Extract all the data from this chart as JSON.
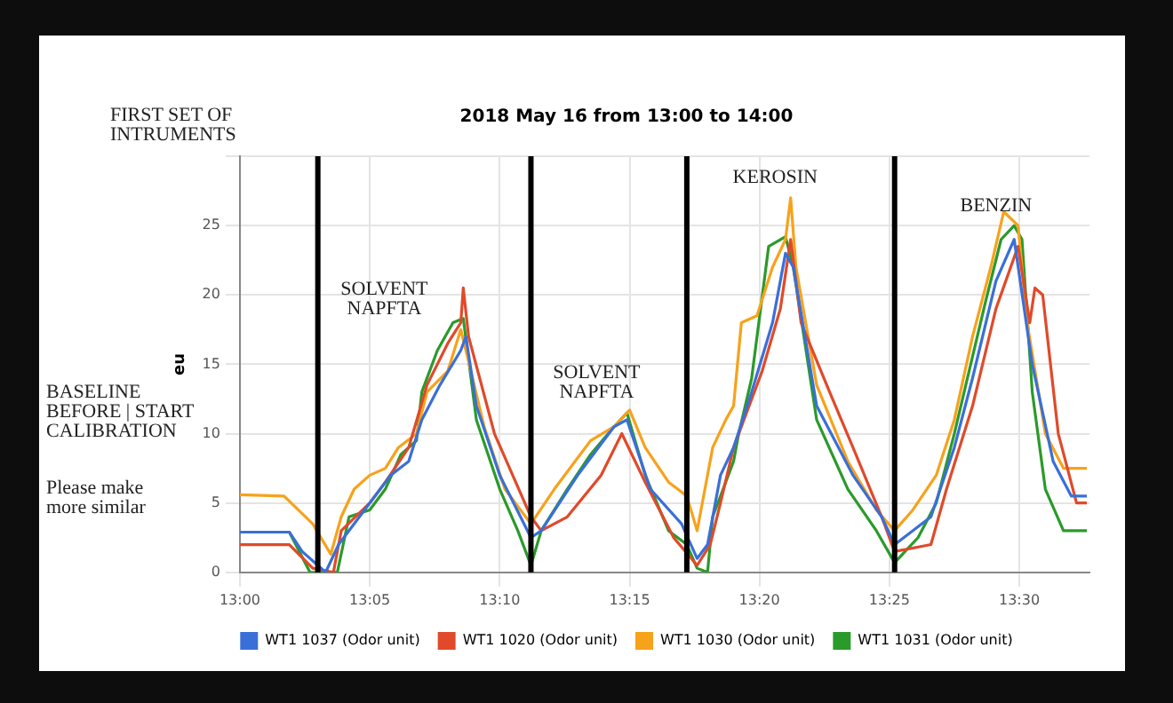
{
  "chart_data": {
    "type": "line",
    "title": "2018 May 16 from 13:00 to 14:00",
    "ylabel": "eu",
    "xlim": [
      13,
      13.545
    ],
    "ylim": [
      0,
      30
    ],
    "xticks": [
      {
        "value": 13,
        "label": "13:00"
      },
      {
        "value": 13.0833,
        "label": "13:05"
      },
      {
        "value": 13.1667,
        "label": "13:10"
      },
      {
        "value": 13.25,
        "label": "13:15"
      },
      {
        "value": 13.3333,
        "label": "13:20"
      },
      {
        "value": 13.4167,
        "label": "13:25"
      },
      {
        "value": 13.5,
        "label": "13:30"
      }
    ],
    "yticks": [
      0,
      5,
      10,
      15,
      20,
      25,
      {
        "value": 30,
        "label": null
      }
    ],
    "grid": true,
    "legend": "bottom",
    "marker": "none",
    "line_style": "solid",
    "series": [
      {
        "name": "WT1 1037 (Odor unit)",
        "color": "#3a6fd8",
        "x": [
          13,
          13.0317,
          13.04,
          13.055,
          13.0633,
          13.0833,
          13.0967,
          13.1083,
          13.1167,
          13.1283,
          13.1417,
          13.145,
          13.1517,
          13.1667,
          13.1867,
          13.1933,
          13.2167,
          13.24,
          13.2483,
          13.2633,
          13.2833,
          13.2933,
          13.3,
          13.3083,
          13.3167,
          13.3283,
          13.3417,
          13.35,
          13.355,
          13.37,
          13.3933,
          13.4117,
          13.42,
          13.4433,
          13.4583,
          13.47,
          13.485,
          13.4967,
          13.5083,
          13.5217,
          13.5333,
          13.5433
        ],
        "values": [
          2.9,
          2.9,
          1.5,
          0,
          2,
          5,
          7,
          8,
          11,
          13.5,
          16,
          17,
          12,
          7,
          2.5,
          3,
          7,
          10.5,
          11,
          6,
          3.5,
          1,
          2,
          7,
          9,
          13,
          18,
          23,
          22,
          12,
          7,
          4,
          2,
          4,
          9,
          14,
          21,
          24,
          15,
          8,
          5.5,
          5.5
        ]
      },
      {
        "name": "WT1 1020 (Odor unit)",
        "color": "#e04a2a",
        "x": [
          13,
          13.0317,
          13.0467,
          13.06,
          13.065,
          13.0833,
          13.0933,
          13.1083,
          13.12,
          13.1333,
          13.1417,
          13.1433,
          13.1467,
          13.1633,
          13.1867,
          13.1933,
          13.21,
          13.2317,
          13.245,
          13.26,
          13.2783,
          13.2933,
          13.3017,
          13.3083,
          13.3167,
          13.3217,
          13.335,
          13.3467,
          13.3533,
          13.36,
          13.3783,
          13.3933,
          13.4117,
          13.42,
          13.4433,
          13.4533,
          13.47,
          13.485,
          13.4992,
          13.5067,
          13.51,
          13.515,
          13.525,
          13.5367,
          13.5433
        ],
        "values": [
          2,
          2,
          0.3,
          0,
          3,
          5,
          6.5,
          9,
          13.5,
          16.5,
          18,
          20.5,
          17,
          10,
          4,
          3,
          4,
          7,
          10,
          6.5,
          2.5,
          0.5,
          2,
          5,
          9,
          10.5,
          14.5,
          19,
          24,
          18,
          13,
          9,
          4,
          1.5,
          2,
          6,
          12,
          19,
          23.5,
          18,
          20.5,
          20,
          10,
          5,
          5
        ]
      },
      {
        "name": "WT1 1030 (Odor unit)",
        "color": "#f7a21b",
        "x": [
          13,
          13.0283,
          13.0467,
          13.0583,
          13.065,
          13.0733,
          13.0833,
          13.0933,
          13.1017,
          13.1133,
          13.12,
          13.1333,
          13.1417,
          13.145,
          13.1567,
          13.17,
          13.1833,
          13.1867,
          13.2017,
          13.225,
          13.24,
          13.25,
          13.26,
          13.275,
          13.2867,
          13.2933,
          13.3033,
          13.3117,
          13.3167,
          13.3217,
          13.3317,
          13.3417,
          13.35,
          13.3533,
          13.3567,
          13.37,
          13.39,
          13.4083,
          13.42,
          13.4317,
          13.4467,
          13.4583,
          13.47,
          13.4817,
          13.49,
          13.4992,
          13.505,
          13.5167,
          13.5283,
          13.5433
        ],
        "values": [
          5.6,
          5.5,
          3.5,
          1.3,
          4,
          6,
          7,
          7.5,
          9,
          10,
          13,
          14.5,
          17.5,
          16,
          10.5,
          6,
          4,
          3.5,
          6,
          9.5,
          10.5,
          11.7,
          9,
          6.5,
          5.5,
          3,
          9,
          11,
          12,
          18,
          18.5,
          22,
          24,
          27,
          22,
          13.5,
          8,
          4.5,
          3,
          4.5,
          7,
          11,
          17,
          22,
          26,
          25,
          18,
          10,
          7.5,
          7.5
        ]
      },
      {
        "name": "WT1 1031 (Odor unit)",
        "color": "#2a9a2a",
        "x": [
          13,
          13.0317,
          13.045,
          13.0625,
          13.07,
          13.0833,
          13.0933,
          13.1033,
          13.1133,
          13.1167,
          13.1267,
          13.1367,
          13.1433,
          13.1517,
          13.1667,
          13.1783,
          13.1867,
          13.1933,
          13.21,
          13.225,
          13.24,
          13.2483,
          13.26,
          13.275,
          13.2867,
          13.2933,
          13.3,
          13.3033,
          13.3167,
          13.32,
          13.3283,
          13.3392,
          13.35,
          13.355,
          13.37,
          13.39,
          13.4083,
          13.42,
          13.435,
          13.4467,
          13.4583,
          13.4667,
          13.4783,
          13.4883,
          13.4967,
          13.5017,
          13.5083,
          13.5167,
          13.5283,
          13.5433
        ],
        "values": [
          2.9,
          2.9,
          0,
          0,
          4,
          4.5,
          6,
          8.5,
          9.5,
          13,
          16,
          18,
          18.3,
          11,
          6,
          3,
          0.5,
          3,
          6,
          8.5,
          10.5,
          11.5,
          7,
          3,
          2,
          0.3,
          0,
          4,
          8,
          10,
          14,
          23.5,
          24.2,
          22,
          11,
          6,
          3,
          0.7,
          2.5,
          5,
          10,
          14,
          19.5,
          24,
          25,
          24,
          13,
          6,
          3,
          3
        ]
      }
    ],
    "ref_lines": [
      {
        "axis": "x",
        "value": 13.05,
        "color": "#000000"
      },
      {
        "axis": "x",
        "value": 13.1867,
        "color": "#000000"
      },
      {
        "axis": "x",
        "value": 13.2867,
        "color": "#000000"
      },
      {
        "axis": "x",
        "value": 13.42,
        "color": "#000000"
      }
    ],
    "annotations": [
      "FIRST SET OF INTRUMENTS",
      "BASELINE BEFORE | START CALIBRATION",
      "Please make more similar",
      "SOLVENT NAPFTA",
      "SOLVENT NAPFTA",
      "KEROSIN",
      "BENZIN"
    ]
  }
}
